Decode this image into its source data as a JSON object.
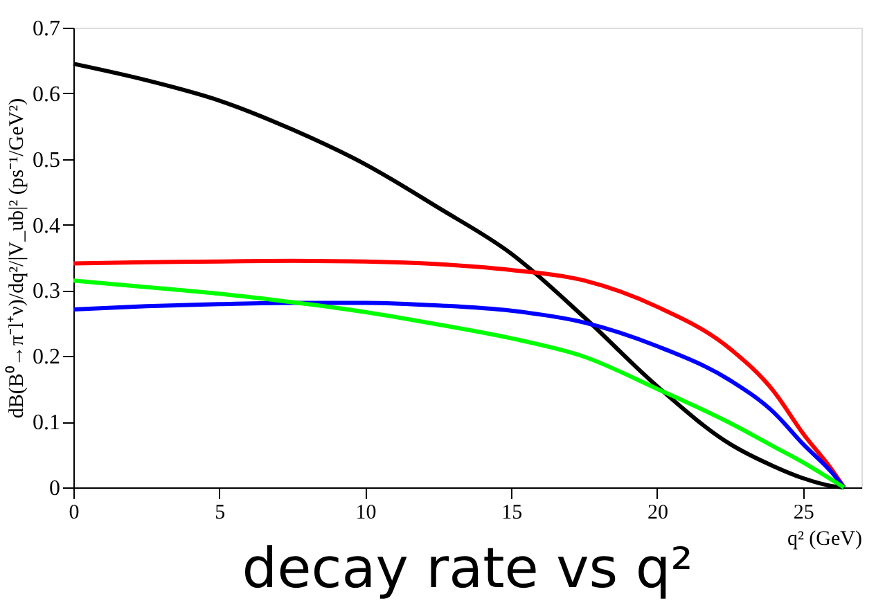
{
  "chart_data": {
    "type": "line",
    "title": "decay rate vs q²",
    "xlabel": "q² (GeV)",
    "ylabel": "dB(B⁰→π⁻l⁺ν)/dq²/|V_ub|² (ps⁻¹/GeV²)",
    "x": [
      0,
      2.5,
      5,
      7.5,
      10,
      12.5,
      15,
      17.5,
      20,
      22.5,
      24,
      25,
      26,
      26.4
    ],
    "series": [
      {
        "color": "#000000",
        "values": [
          0.645,
          0.62,
          0.589,
          0.545,
          0.492,
          0.426,
          0.356,
          0.259,
          0.154,
          0.066,
          0.032,
          0.014,
          0.002,
          0
        ]
      },
      {
        "color": "#ff0000",
        "values": [
          0.341,
          0.343,
          0.344,
          0.345,
          0.344,
          0.34,
          0.331,
          0.315,
          0.275,
          0.211,
          0.146,
          0.082,
          0.026,
          0
        ]
      },
      {
        "color": "#0000ff",
        "values": [
          0.271,
          0.276,
          0.279,
          0.281,
          0.281,
          0.277,
          0.269,
          0.251,
          0.215,
          0.163,
          0.114,
          0.066,
          0.022,
          0
        ]
      },
      {
        "color": "#00ff00",
        "values": [
          0.315,
          0.305,
          0.295,
          0.282,
          0.267,
          0.248,
          0.227,
          0.199,
          0.15,
          0.098,
          0.062,
          0.038,
          0.011,
          0
        ]
      }
    ],
    "xlim": [
      0,
      27
    ],
    "xticks": [
      0,
      5,
      10,
      15,
      20,
      25
    ],
    "ylim": [
      0,
      0.7
    ],
    "yticks": [
      {
        "value": 0,
        "label": "0"
      },
      0.1,
      0.2,
      0.3,
      0.4,
      0.5,
      0.6,
      0.7
    ],
    "grid": false,
    "legend": false,
    "marker": "none",
    "line_style": "solid"
  }
}
